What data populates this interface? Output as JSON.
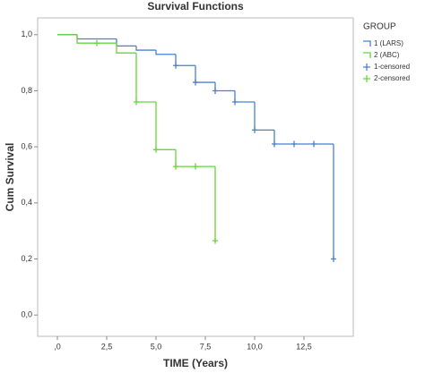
{
  "chart_data": {
    "type": "step",
    "title": "Survival Functions",
    "x_label": "TIME (Years)",
    "y_label": "Cum Survival",
    "legend_title": "GROUP",
    "legend": "right",
    "xlim": [
      -1,
      15
    ],
    "ylim": [
      -0.076,
      1.06
    ],
    "xticks": [
      {
        "value": 0,
        "label": ",0"
      },
      {
        "value": 2.5,
        "label": "2,5"
      },
      {
        "value": 5,
        "label": "5,0"
      },
      {
        "value": 7.5,
        "label": "7,5"
      },
      {
        "value": 10,
        "label": "10,0"
      },
      {
        "value": 12.5,
        "label": "12,5"
      }
    ],
    "yticks": [
      {
        "value": 0,
        "label": "0,0"
      },
      {
        "value": 0.2,
        "label": "0,2"
      },
      {
        "value": 0.4,
        "label": "0,4"
      },
      {
        "value": 0.6,
        "label": "0,6"
      },
      {
        "value": 0.8,
        "label": "0,8"
      },
      {
        "value": 1,
        "label": "1,0"
      }
    ],
    "series": [
      {
        "name": "1 (LARS)",
        "color": "#4a7fd4",
        "marker": "step",
        "x": [
          0,
          1,
          3,
          4,
          5,
          6,
          7,
          8,
          9,
          10,
          11,
          14
        ],
        "values": [
          1,
          0.985,
          0.96,
          0.945,
          0.93,
          0.89,
          0.83,
          0.8,
          0.76,
          0.66,
          0.61,
          0.2
        ]
      },
      {
        "name": "2 (ABC)",
        "color": "#66d63a",
        "marker": "step",
        "x": [
          0,
          1,
          3,
          4,
          5,
          6,
          8
        ],
        "values": [
          1,
          0.97,
          0.935,
          0.76,
          0.59,
          0.53,
          0.265
        ]
      },
      {
        "name": "1-censored",
        "color": "#4a7fd4",
        "marker": "plus",
        "x": [
          6,
          7,
          8,
          9,
          10,
          11,
          12,
          13,
          14
        ],
        "values": [
          0.89,
          0.83,
          0.8,
          0.76,
          0.66,
          0.61,
          0.61,
          0.61,
          0.2
        ]
      },
      {
        "name": "2-censored",
        "color": "#66d63a",
        "marker": "plus",
        "x": [
          2,
          4,
          5,
          6,
          7,
          8
        ],
        "values": [
          0.97,
          0.76,
          0.59,
          0.53,
          0.53,
          0.265
        ]
      }
    ]
  }
}
